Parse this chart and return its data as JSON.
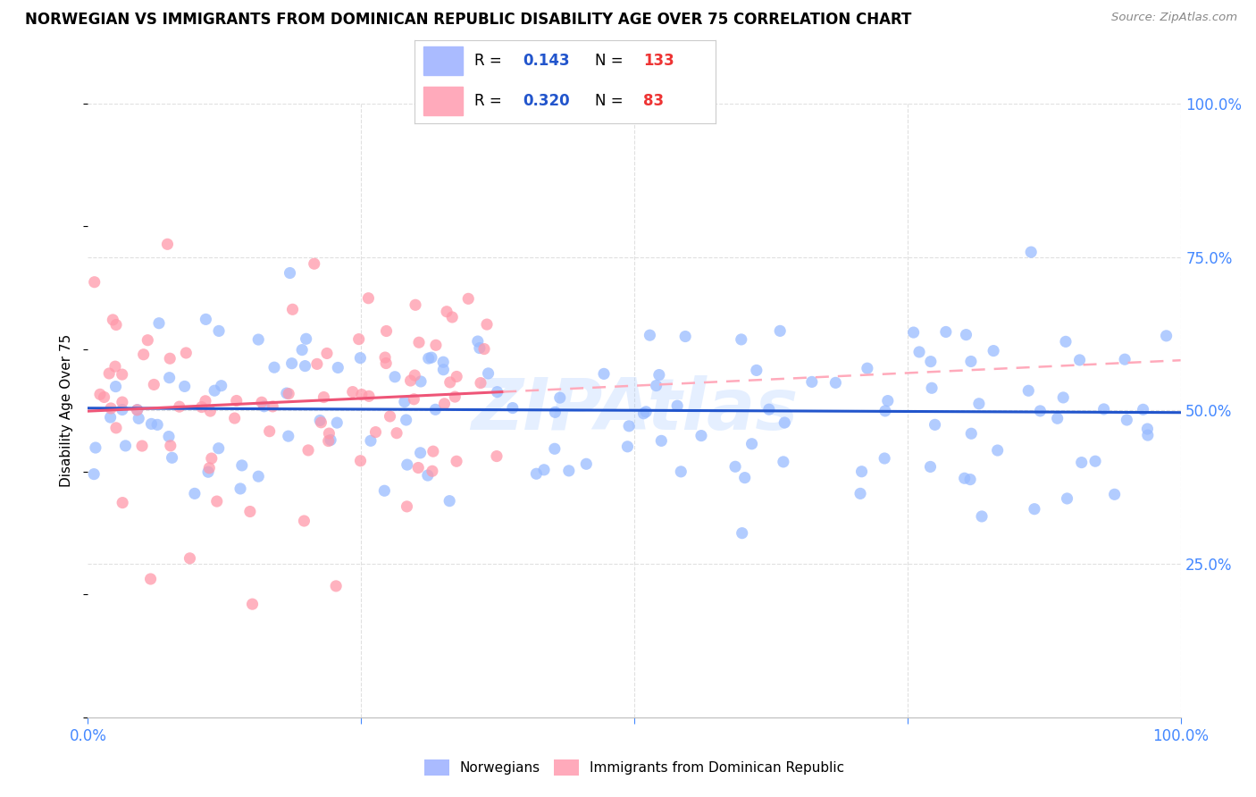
{
  "title": "NORWEGIAN VS IMMIGRANTS FROM DOMINICAN REPUBLIC DISABILITY AGE OVER 75 CORRELATION CHART",
  "source": "Source: ZipAtlas.com",
  "ylabel": "Disability Age Over 75",
  "xlim": [
    0,
    1
  ],
  "ylim": [
    -0.05,
    1.05
  ],
  "plot_ylim": [
    0.0,
    1.0
  ],
  "norwegian_color": "#99bbff",
  "dominican_color": "#ff99aa",
  "norwegian_line_color": "#2255cc",
  "dominican_line_color": "#ee5577",
  "dominican_dash_color": "#ffaabb",
  "watermark": "ZIPAtlas",
  "legend_r_nor": "0.143",
  "legend_n_nor": "133",
  "legend_r_dom": "0.320",
  "legend_n_dom": "83",
  "background_color": "#ffffff",
  "grid_color": "#e0e0e0",
  "title_fontsize": 12,
  "tick_color": "#4488ff",
  "norwegian_R": 0.143,
  "dominican_R": 0.32,
  "norwegian_N": 133,
  "dominican_N": 83,
  "nor_seed": 42,
  "dom_seed": 17
}
